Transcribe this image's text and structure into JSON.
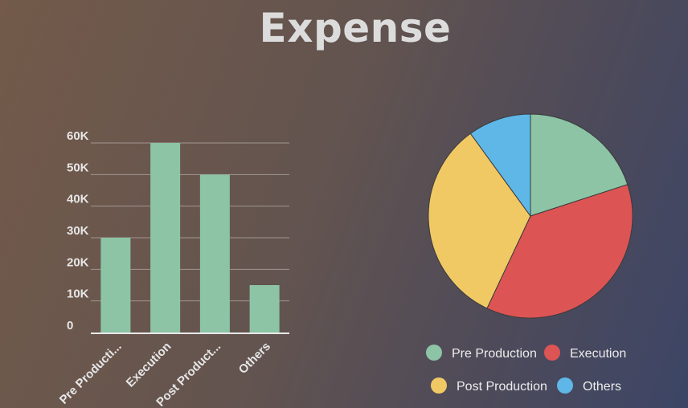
{
  "title": "Expense",
  "chart_data": [
    {
      "type": "bar",
      "categories": [
        "Pre Producti...",
        "Execution",
        "Post Product...",
        "Others"
      ],
      "values": [
        30000,
        60000,
        50000,
        15000
      ],
      "y_ticks": [
        "0",
        "10K",
        "20K",
        "30K",
        "40K",
        "50K",
        "60K"
      ],
      "ylim": [
        0,
        60000
      ],
      "grid": true,
      "bar_color": "#8cc4a5"
    },
    {
      "type": "pie",
      "labels": [
        "Pre Production",
        "Execution",
        "Post Production",
        "Others"
      ],
      "values": [
        20,
        37,
        33,
        10
      ],
      "colors": [
        "#8cc4a5",
        "#dd5454",
        "#f0c965",
        "#5fb7e8"
      ],
      "legend_position": "bottom"
    }
  ]
}
